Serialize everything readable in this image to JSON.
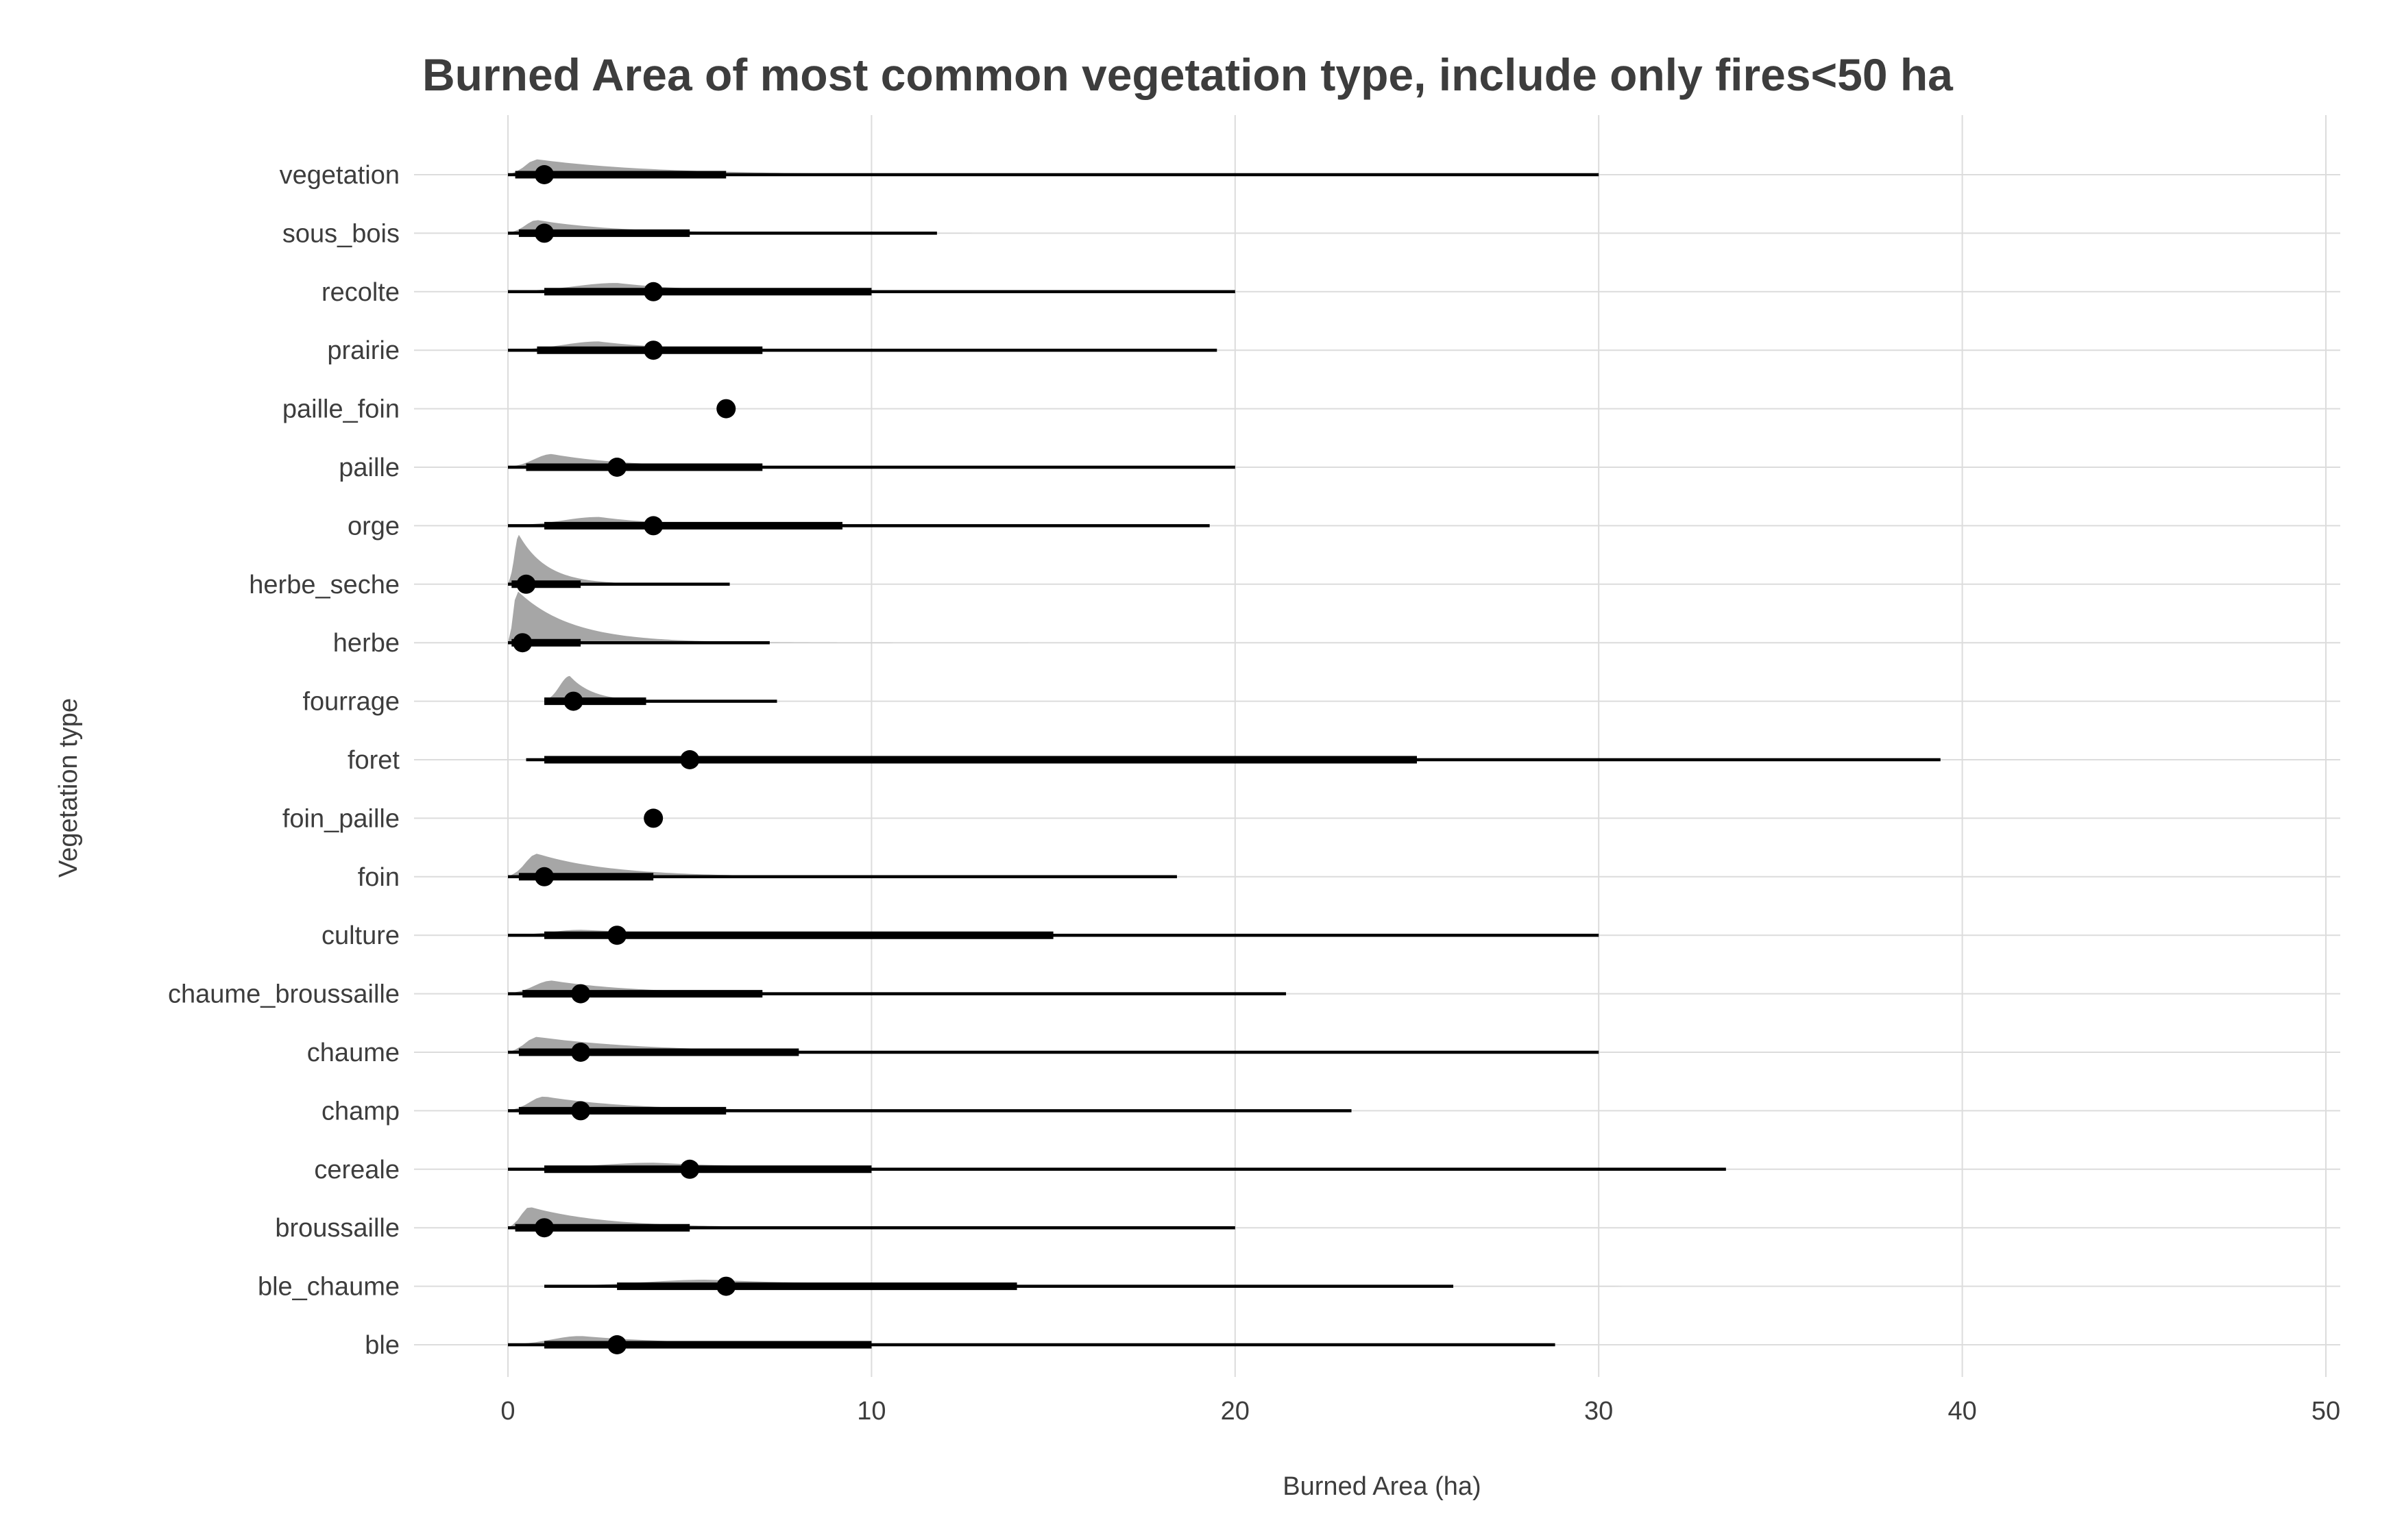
{
  "chart_data": {
    "type": "violin-interval",
    "title": "Burned Area of most common vegetation type, include only fires<50 ha",
    "xlabel": "Burned Area (ha)",
    "ylabel": "Vegetation type",
    "xlim": [
      0,
      50
    ],
    "x_ticks": [
      0,
      10,
      20,
      30,
      40,
      50
    ],
    "grid": true,
    "colors": {
      "density": "#a6a6a6",
      "interval": "#000000",
      "grid": "#dcdcdc",
      "text": "#3d3d3d"
    },
    "categories": [
      "vegetation",
      "sous_bois",
      "recolte",
      "prairie",
      "paille_foin",
      "paille",
      "orge",
      "herbe_seche",
      "herbe",
      "fourrage",
      "foret",
      "foin_paille",
      "foin",
      "culture",
      "chaume_broussaille",
      "chaume",
      "champ",
      "cereale",
      "broussaille",
      "ble_chaume",
      "ble"
    ],
    "series": [
      {
        "category": "vegetation",
        "median": 1,
        "q1": 0.2,
        "q3": 6,
        "min": 0,
        "max": 30,
        "density_max": 32,
        "peak": 0.8,
        "peak_height": 0.28
      },
      {
        "category": "sous_bois",
        "median": 1,
        "q1": 0.3,
        "q3": 5,
        "min": 0,
        "max": 11.8,
        "density_max": 22,
        "peak": 0.8,
        "peak_height": 0.24
      },
      {
        "category": "recolte",
        "median": 4,
        "q1": 1,
        "q3": 10,
        "min": 0,
        "max": 20,
        "density_max": 23,
        "peak": 3,
        "peak_height": 0.16
      },
      {
        "category": "prairie",
        "median": 4,
        "q1": 0.8,
        "q3": 7,
        "min": 0,
        "max": 19.5,
        "density_max": 21,
        "peak": 2.5,
        "peak_height": 0.16
      },
      {
        "category": "paille_foin",
        "median": 6,
        "q1": 6,
        "q3": 6,
        "min": 6,
        "max": 6,
        "density_max": 6,
        "peak": 6,
        "peak_height": 0
      },
      {
        "category": "paille",
        "median": 3,
        "q1": 0.5,
        "q3": 7,
        "min": 0,
        "max": 20,
        "density_max": 21,
        "peak": 1.2,
        "peak_height": 0.24
      },
      {
        "category": "orge",
        "median": 4,
        "q1": 1,
        "q3": 9.2,
        "min": 0,
        "max": 19.3,
        "density_max": 20,
        "peak": 2.5,
        "peak_height": 0.16
      },
      {
        "category": "herbe_seche",
        "median": 0.5,
        "q1": 0.1,
        "q3": 2,
        "min": 0,
        "max": 6.1,
        "density_max": 8,
        "peak": 0.3,
        "peak_height": 0.9
      },
      {
        "category": "herbe",
        "median": 0.4,
        "q1": 0.1,
        "q3": 2,
        "min": 0,
        "max": 7.2,
        "density_max": 15,
        "peak": 0.25,
        "peak_height": 0.95
      },
      {
        "category": "fourrage",
        "median": 1.8,
        "q1": 1,
        "q3": 3.8,
        "min": 1,
        "max": 7.4,
        "density_max": 8,
        "peak": 1.7,
        "peak_height": 0.46
      },
      {
        "category": "foret",
        "median": 5,
        "q1": 1,
        "q3": 25,
        "min": 0.5,
        "max": 39.4,
        "density_max": 40,
        "peak": 3,
        "peak_height": 0.06
      },
      {
        "category": "foin_paille",
        "median": 4,
        "q1": 4,
        "q3": 4,
        "min": 4,
        "max": 4,
        "density_max": 4,
        "peak": 4,
        "peak_height": 0
      },
      {
        "category": "foin",
        "median": 1,
        "q1": 0.3,
        "q3": 4,
        "min": 0,
        "max": 18.4,
        "density_max": 21,
        "peak": 0.8,
        "peak_height": 0.42
      },
      {
        "category": "culture",
        "median": 3,
        "q1": 1,
        "q3": 15,
        "min": 0,
        "max": 30,
        "density_max": 32,
        "peak": 2,
        "peak_height": 0.1
      },
      {
        "category": "chaume_broussaille",
        "median": 2,
        "q1": 0.4,
        "q3": 7,
        "min": 0,
        "max": 21.4,
        "density_max": 24,
        "peak": 1.2,
        "peak_height": 0.24
      },
      {
        "category": "chaume",
        "median": 2,
        "q1": 0.3,
        "q3": 8,
        "min": 0,
        "max": 30,
        "density_max": 31,
        "peak": 0.8,
        "peak_height": 0.28
      },
      {
        "category": "champ",
        "median": 2,
        "q1": 0.3,
        "q3": 6,
        "min": 0,
        "max": 23.2,
        "density_max": 25,
        "peak": 1,
        "peak_height": 0.26
      },
      {
        "category": "cereale",
        "median": 5,
        "q1": 1,
        "q3": 10,
        "min": 0,
        "max": 33.5,
        "density_max": 40,
        "peak": 4,
        "peak_height": 0.12
      },
      {
        "category": "broussaille",
        "median": 1,
        "q1": 0.2,
        "q3": 5,
        "min": 0,
        "max": 20,
        "density_max": 21,
        "peak": 0.6,
        "peak_height": 0.38
      },
      {
        "category": "ble_chaume",
        "median": 6,
        "q1": 3,
        "q3": 14,
        "min": 1,
        "max": 26,
        "density_max": 48,
        "peak": 5.5,
        "peak_height": 0.12
      },
      {
        "category": "ble",
        "median": 3,
        "q1": 1,
        "q3": 10,
        "min": 0,
        "max": 28.8,
        "density_max": 30,
        "peak": 2,
        "peak_height": 0.16
      }
    ]
  }
}
